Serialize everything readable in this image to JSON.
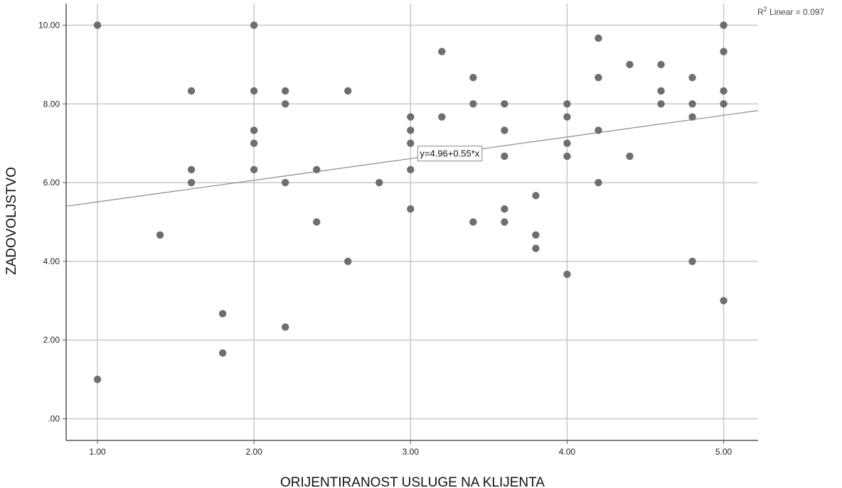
{
  "chart_data": {
    "type": "scatter",
    "title": "",
    "xlabel": "ORIJENTIRANOST USLUGE NA KLIJENTA",
    "ylabel": "ZADOVOLJSTVO",
    "xlim": [
      0.8,
      5.22
    ],
    "ylim": [
      -0.55,
      10.55
    ],
    "x_ticks": [
      1.0,
      2.0,
      3.0,
      4.0,
      5.0
    ],
    "x_tick_labels": [
      "1.00",
      "2.00",
      "3.00",
      "4.00",
      "5.00"
    ],
    "y_ticks": [
      0,
      2,
      4,
      6,
      8,
      10
    ],
    "y_tick_labels": [
      ".00",
      "2.00",
      "4.00",
      "6.00",
      "8.00",
      "10.00"
    ],
    "grid": true,
    "colors": {
      "points": "#6e6e6e",
      "fit_line": "#8a8a8a",
      "grid": "#c8c8c8",
      "axis": "#555555"
    },
    "points": [
      [
        1.0,
        10.0
      ],
      [
        1.0,
        1.0
      ],
      [
        1.4,
        4.67
      ],
      [
        1.6,
        8.33
      ],
      [
        1.6,
        6.33
      ],
      [
        1.6,
        6.0
      ],
      [
        1.8,
        2.67
      ],
      [
        1.8,
        1.67
      ],
      [
        2.0,
        10.0
      ],
      [
        2.0,
        8.33
      ],
      [
        2.0,
        7.33
      ],
      [
        2.0,
        7.0
      ],
      [
        2.0,
        6.33
      ],
      [
        2.2,
        8.33
      ],
      [
        2.2,
        8.0
      ],
      [
        2.2,
        6.0
      ],
      [
        2.2,
        2.33
      ],
      [
        2.4,
        6.33
      ],
      [
        2.4,
        5.0
      ],
      [
        2.6,
        8.33
      ],
      [
        2.6,
        4.0
      ],
      [
        2.8,
        6.0
      ],
      [
        3.0,
        7.67
      ],
      [
        3.0,
        7.33
      ],
      [
        3.0,
        7.0
      ],
      [
        3.0,
        6.33
      ],
      [
        3.0,
        5.33
      ],
      [
        3.2,
        9.33
      ],
      [
        3.2,
        7.67
      ],
      [
        3.4,
        8.67
      ],
      [
        3.4,
        8.0
      ],
      [
        3.4,
        5.0
      ],
      [
        3.6,
        8.0
      ],
      [
        3.6,
        7.33
      ],
      [
        3.6,
        6.67
      ],
      [
        3.6,
        5.33
      ],
      [
        3.6,
        5.0
      ],
      [
        3.8,
        5.67
      ],
      [
        3.8,
        4.67
      ],
      [
        3.8,
        4.33
      ],
      [
        4.0,
        8.0
      ],
      [
        4.0,
        7.67
      ],
      [
        4.0,
        7.0
      ],
      [
        4.0,
        6.67
      ],
      [
        4.0,
        3.67
      ],
      [
        4.2,
        9.67
      ],
      [
        4.2,
        8.67
      ],
      [
        4.2,
        7.33
      ],
      [
        4.2,
        6.0
      ],
      [
        4.4,
        9.0
      ],
      [
        4.4,
        6.67
      ],
      [
        4.6,
        9.0
      ],
      [
        4.6,
        8.33
      ],
      [
        4.6,
        8.0
      ],
      [
        4.8,
        8.67
      ],
      [
        4.8,
        8.0
      ],
      [
        4.8,
        7.67
      ],
      [
        4.8,
        4.0
      ],
      [
        5.0,
        10.0
      ],
      [
        5.0,
        9.33
      ],
      [
        5.0,
        8.33
      ],
      [
        5.0,
        8.0
      ],
      [
        5.0,
        3.0
      ]
    ],
    "fit": {
      "intercept": 4.96,
      "slope": 0.55,
      "label": "y=4.96+0.55*x",
      "label_x": 3.25
    },
    "r2_label": {
      "prefix": "R",
      "superscript": "2",
      "suffix": " Linear = 0.097"
    }
  }
}
